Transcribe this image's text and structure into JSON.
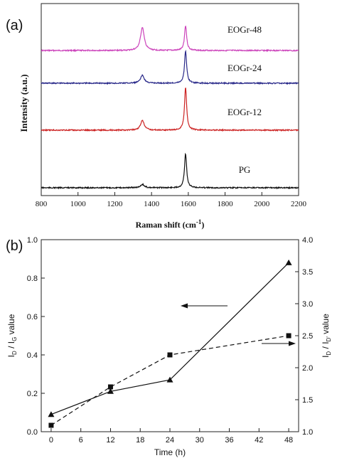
{
  "chart_data": [
    {
      "panel_label": "(a)",
      "type": "line",
      "xlabel_main": "Raman shift (cm",
      "xlabel_sup": "-1",
      "xlabel_end": ")",
      "ylabel": "Intensity (a.u.)",
      "xlim": [
        800,
        2200
      ],
      "xticks": [
        800,
        1000,
        1200,
        1400,
        1600,
        1800,
        2000,
        2200
      ],
      "grid": false,
      "series": [
        {
          "name": "EOGr-48",
          "color": "#cc44bb",
          "d_band_height": 0.68,
          "g_band_height": 0.73
        },
        {
          "name": "EOGr-24",
          "color": "#2a2a8a",
          "d_band_height": 0.23,
          "g_band_height": 0.94
        },
        {
          "name": "EOGr-12",
          "color": "#cc2222",
          "d_band_height": 0.28,
          "g_band_height": 1.25
        },
        {
          "name": "PG",
          "color": "#111111",
          "d_band_height": 0.1,
          "g_band_height": 1.0
        }
      ],
      "peaks_cm": {
        "D": 1350,
        "G": 1585
      }
    },
    {
      "panel_label": "(b)",
      "type": "line",
      "xlabel": "Time (h)",
      "ylabel_left_main": "I",
      "ylabel_left_sub1": "D",
      "ylabel_left_mid": " / I",
      "ylabel_left_sub2": "G",
      "ylabel_left_end": " value",
      "ylabel_right_main": "I",
      "ylabel_right_sub1": "D",
      "ylabel_right_mid": " / I",
      "ylabel_right_sub2": "D'",
      "ylabel_right_end": " value",
      "x": [
        0,
        12,
        24,
        48
      ],
      "xlim": [
        -2,
        50
      ],
      "xticks": [
        0,
        6,
        12,
        18,
        24,
        30,
        36,
        42,
        48
      ],
      "ylim_left": [
        0.0,
        1.0
      ],
      "yticks_left": [
        "0.0",
        "0.2",
        "0.4",
        "0.6",
        "0.8",
        "1.0"
      ],
      "ylim_right": [
        1.0,
        4.0
      ],
      "yticks_right": [
        "1.0",
        "1.5",
        "2.0",
        "2.5",
        "3.0",
        "3.5",
        "4.0"
      ],
      "grid": false,
      "series": [
        {
          "axis": "left",
          "marker": "triangle",
          "style": "solid",
          "values": [
            0.09,
            0.21,
            0.27,
            0.88
          ]
        },
        {
          "axis": "right",
          "marker": "square",
          "style": "dashed",
          "values": [
            1.1,
            1.7,
            2.2,
            2.5
          ]
        }
      ]
    }
  ]
}
